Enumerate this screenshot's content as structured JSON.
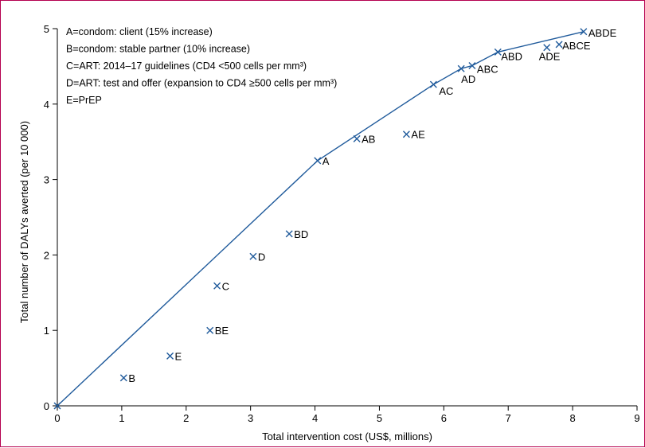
{
  "chart_data": {
    "type": "scatter",
    "xlabel": "Total intervention cost  (US$, millions)",
    "ylabel": "Total number of DALYs averted (per 10 000)",
    "xlim": [
      0,
      9
    ],
    "ylim": [
      0,
      5
    ],
    "xticks": [
      "0",
      "1",
      "2",
      "3",
      "4",
      "5",
      "6",
      "7",
      "8",
      "9"
    ],
    "yticks": [
      "0",
      "1",
      "2",
      "3",
      "4",
      "5"
    ],
    "grid": false,
    "legend_placement": "top-left",
    "legend": [
      "A=condom: client (15% increase)",
      "B=condom: stable partner (10% increase)",
      "C=ART: 2014–17 guidelines (CD4 <500 cells per mm³)",
      "D=ART: test and offer (expansion to CD4 ≥500 cells per mm³)",
      "E=PrEP"
    ],
    "points": [
      {
        "label": "B",
        "x": 1.03,
        "y": 0.37
      },
      {
        "label": "E",
        "x": 1.75,
        "y": 0.66
      },
      {
        "label": "BE",
        "x": 2.37,
        "y": 1.0
      },
      {
        "label": "C",
        "x": 2.48,
        "y": 1.59
      },
      {
        "label": "D",
        "x": 3.04,
        "y": 1.98
      },
      {
        "label": "BD",
        "x": 3.6,
        "y": 2.28
      },
      {
        "label": "A",
        "x": 4.04,
        "y": 3.25
      },
      {
        "label": "AB",
        "x": 4.65,
        "y": 3.54
      },
      {
        "label": "AE",
        "x": 5.42,
        "y": 3.6
      },
      {
        "label": "AC",
        "x": 5.84,
        "y": 4.26
      },
      {
        "label": "AD",
        "x": 6.27,
        "y": 4.47
      },
      {
        "label": "ABC",
        "x": 6.44,
        "y": 4.51
      },
      {
        "label": "ABD",
        "x": 6.84,
        "y": 4.69
      },
      {
        "label": "ADE",
        "x": 7.6,
        "y": 4.75
      },
      {
        "label": "ABCE",
        "x": 7.79,
        "y": 4.79
      },
      {
        "label": "ABDE",
        "x": 8.17,
        "y": 4.96
      }
    ],
    "frontier": [
      {
        "x": 0,
        "y": 0
      },
      {
        "x": 4.04,
        "y": 3.25
      },
      {
        "x": 5.84,
        "y": 4.26
      },
      {
        "x": 6.27,
        "y": 4.47
      },
      {
        "x": 6.44,
        "y": 4.51
      },
      {
        "x": 6.84,
        "y": 4.69
      },
      {
        "x": 8.17,
        "y": 4.96
      }
    ],
    "colors": {
      "marker": "#1f5a9b",
      "frontier": "#1f5a9b",
      "frame": "#b5004f"
    }
  }
}
